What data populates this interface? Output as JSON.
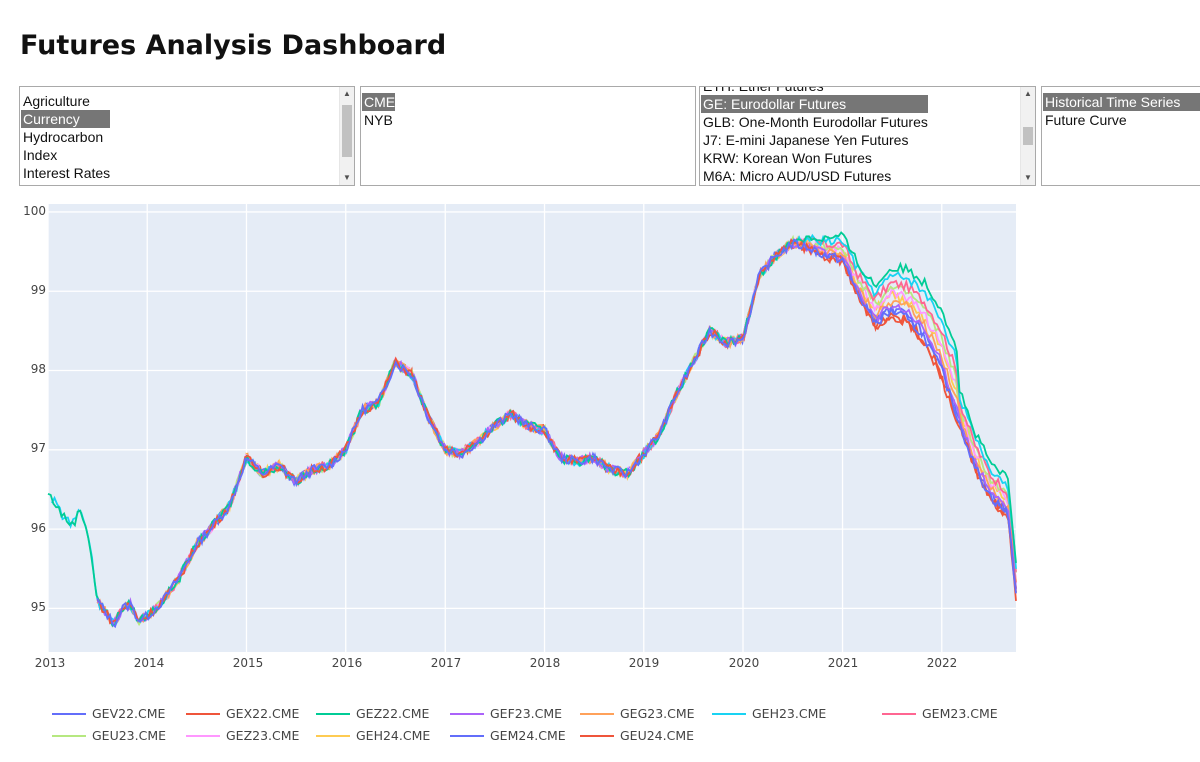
{
  "page": {
    "title": "Futures Analysis Dashboard"
  },
  "selectors": {
    "category": {
      "items": [
        "Agriculture",
        "Currency",
        "Hydrocarbon",
        "Index",
        "Interest Rates"
      ],
      "selected": 1
    },
    "exchange": {
      "items": [
        "CME",
        "NYB"
      ],
      "selected": 0
    },
    "product": {
      "items": [
        "ETH: Ether Futures",
        "GE: Eurodollar Futures",
        "GLB: One-Month Eurodollar Futures",
        "J7: E-mini Japanese Yen Futures",
        "KRW: Korean Won Futures",
        "M6A: Micro AUD/USD Futures"
      ],
      "selected": 1
    },
    "view": {
      "items": [
        "Historical Time Series",
        "Future Curve"
      ],
      "selected": 0
    }
  },
  "chart_data": {
    "type": "line",
    "x_ticks": [
      "2013",
      "2014",
      "2015",
      "2016",
      "2017",
      "2018",
      "2019",
      "2020",
      "2021",
      "2022"
    ],
    "y_ticks": [
      "95",
      "96",
      "97",
      "98",
      "99",
      "100"
    ],
    "xlim": [
      "2013-01-01",
      "2022-10-01"
    ],
    "ylim": [
      94.45,
      100.1
    ],
    "legend_position": "bottom",
    "grid": true,
    "base_curve": [
      [
        "2013-01-01",
        96.45
      ],
      [
        "2013-02-01",
        96.3
      ],
      [
        "2013-03-01",
        96.15
      ],
      [
        "2013-04-01",
        96.05
      ],
      [
        "2013-05-01",
        96.25
      ],
      [
        "2013-06-01",
        95.9
      ],
      [
        "2013-07-01",
        95.1
      ],
      [
        "2013-08-01",
        94.95
      ],
      [
        "2013-09-01",
        94.8
      ],
      [
        "2013-10-01",
        95.0
      ],
      [
        "2013-11-01",
        95.05
      ],
      [
        "2013-12-01",
        94.85
      ],
      [
        "2014-01-01",
        94.9
      ],
      [
        "2014-03-01",
        95.1
      ],
      [
        "2014-05-01",
        95.4
      ],
      [
        "2014-07-01",
        95.8
      ],
      [
        "2014-09-01",
        96.05
      ],
      [
        "2014-11-01",
        96.3
      ],
      [
        "2015-01-01",
        96.9
      ],
      [
        "2015-03-01",
        96.7
      ],
      [
        "2015-05-01",
        96.8
      ],
      [
        "2015-07-01",
        96.6
      ],
      [
        "2015-09-01",
        96.75
      ],
      [
        "2015-11-01",
        96.8
      ],
      [
        "2016-01-01",
        97.0
      ],
      [
        "2016-03-01",
        97.5
      ],
      [
        "2016-05-01",
        97.6
      ],
      [
        "2016-07-01",
        98.1
      ],
      [
        "2016-09-01",
        97.95
      ],
      [
        "2016-11-01",
        97.4
      ],
      [
        "2017-01-01",
        97.0
      ],
      [
        "2017-03-01",
        96.95
      ],
      [
        "2017-05-01",
        97.1
      ],
      [
        "2017-07-01",
        97.3
      ],
      [
        "2017-09-01",
        97.45
      ],
      [
        "2017-11-01",
        97.3
      ],
      [
        "2018-01-01",
        97.25
      ],
      [
        "2018-03-01",
        96.9
      ],
      [
        "2018-05-01",
        96.85
      ],
      [
        "2018-07-01",
        96.9
      ],
      [
        "2018-09-01",
        96.75
      ],
      [
        "2018-11-01",
        96.7
      ],
      [
        "2019-01-01",
        96.95
      ],
      [
        "2019-03-01",
        97.2
      ],
      [
        "2019-05-01",
        97.7
      ],
      [
        "2019-07-01",
        98.1
      ],
      [
        "2019-09-01",
        98.5
      ],
      [
        "2019-11-01",
        98.35
      ],
      [
        "2020-01-01",
        98.4
      ],
      [
        "2020-03-01",
        99.2
      ],
      [
        "2020-05-01",
        99.45
      ],
      [
        "2020-07-01",
        99.6
      ],
      [
        "2020-09-01",
        99.55
      ],
      [
        "2020-11-01",
        99.45
      ],
      [
        "2021-01-01",
        99.4
      ],
      [
        "2021-03-01",
        98.95
      ],
      [
        "2021-05-01",
        98.6
      ],
      [
        "2021-07-01",
        98.75
      ],
      [
        "2021-09-01",
        98.65
      ],
      [
        "2021-11-01",
        98.4
      ],
      [
        "2022-01-01",
        98.0
      ],
      [
        "2022-03-01",
        97.4
      ],
      [
        "2022-05-01",
        96.8
      ],
      [
        "2022-07-01",
        96.4
      ],
      [
        "2022-09-01",
        96.2
      ],
      [
        "2022-10-01",
        95.2
      ]
    ],
    "series": [
      {
        "name": "GEV22.CME",
        "color": "#636efa",
        "start": "2013-07-01",
        "spread2021": 0.0
      },
      {
        "name": "GEX22.CME",
        "color": "#ef553b",
        "start": "2013-07-01",
        "spread2021": -0.05
      },
      {
        "name": "GEZ22.CME",
        "color": "#00cc96",
        "start": "2013-01-01",
        "spread2021": 0.85
      },
      {
        "name": "GEF23.CME",
        "color": "#ab63fa",
        "start": "2013-07-01",
        "spread2021": 0.1
      },
      {
        "name": "GEG23.CME",
        "color": "#ffa15a",
        "start": "2013-07-01",
        "spread2021": 0.2
      },
      {
        "name": "GEH23.CME",
        "color": "#19d3f3",
        "start": "2013-01-15",
        "spread2021": 0.7
      },
      {
        "name": "GEM23.CME",
        "color": "#ff6692",
        "start": "2013-07-01",
        "spread2021": 0.55
      },
      {
        "name": "GEU23.CME",
        "color": "#b6e880",
        "start": "2013-09-01",
        "spread2021": 0.45
      },
      {
        "name": "GEZ23.CME",
        "color": "#ff97ff",
        "start": "2013-12-01",
        "spread2021": 0.35
      },
      {
        "name": "GEH24.CME",
        "color": "#fecb52",
        "start": "2014-03-01",
        "spread2021": 0.3
      },
      {
        "name": "GEM24.CME",
        "color": "#636efa",
        "start": "2014-06-01",
        "spread2021": 0.05
      },
      {
        "name": "GEU24.CME",
        "color": "#ef553b",
        "start": "2014-09-01",
        "spread2021": -0.1
      }
    ]
  }
}
